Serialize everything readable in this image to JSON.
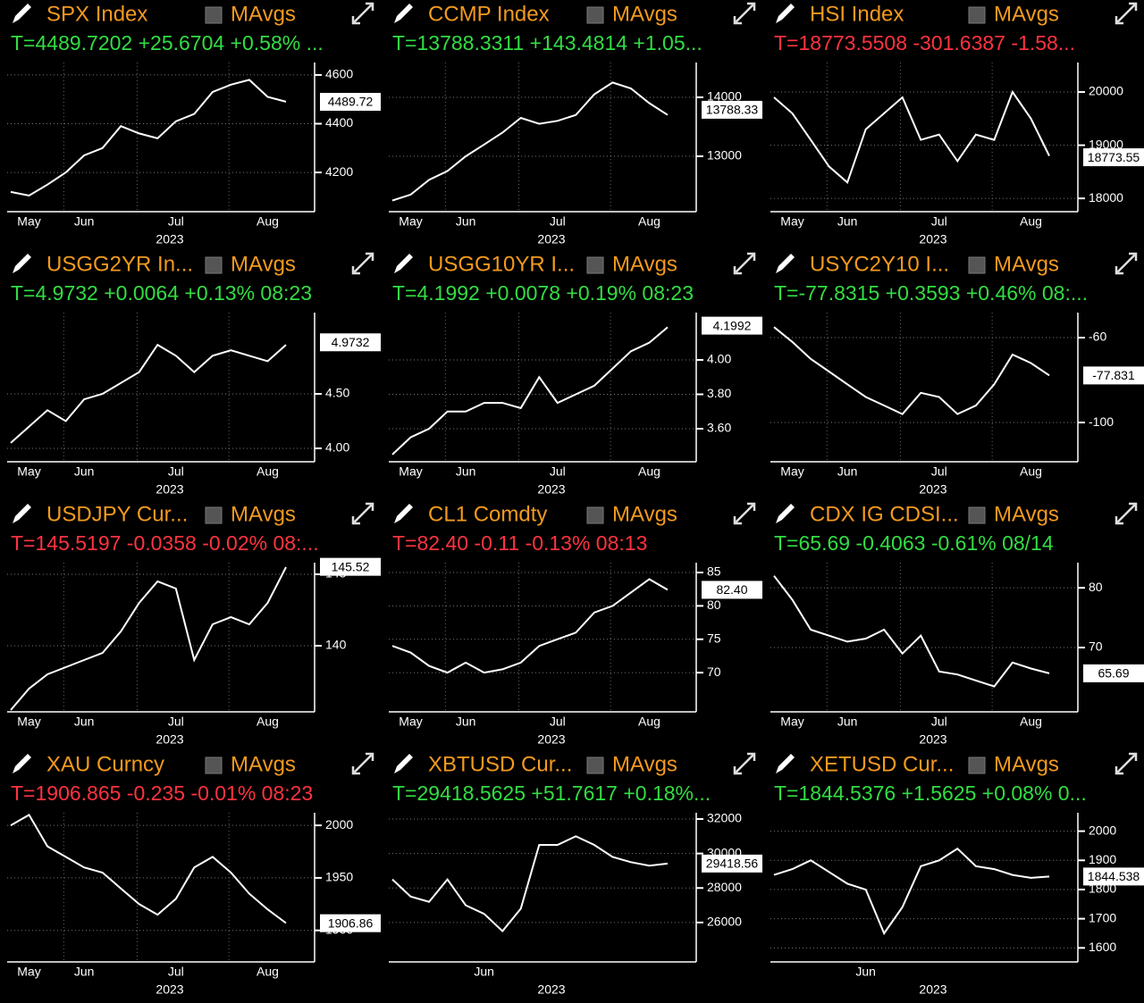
{
  "chart_data": [
    {
      "type": "line",
      "title": "SPX Index",
      "toggle": "MAvgs",
      "quote": "T=4489.7202 +25.6704 +0.58% ...",
      "quote_color": "#33dd44",
      "color": "#ffffff",
      "categories": [
        null,
        "May",
        null,
        null,
        "Jun",
        null,
        null,
        null,
        null,
        "Jul",
        null,
        null,
        null,
        null,
        "Aug",
        null
      ],
      "values": [
        4120,
        4105,
        4150,
        4200,
        4270,
        4300,
        4390,
        4360,
        4340,
        4410,
        4440,
        4530,
        4560,
        4580,
        4510,
        4490
      ],
      "ylim": [
        4039,
        4651
      ],
      "yticks": [
        4200,
        4400,
        4600
      ],
      "last_value": 4489.72,
      "year": "2023"
    },
    {
      "type": "line",
      "title": "CCMP Index",
      "toggle": "MAvgs",
      "quote": "T=13788.3311 +143.4814 +1.05...",
      "quote_color": "#33dd44",
      "color": "#ffffff",
      "categories": [
        null,
        "May",
        null,
        null,
        "Jun",
        null,
        null,
        null,
        null,
        "Jul",
        null,
        null,
        null,
        null,
        "Aug",
        null
      ],
      "values": [
        12250,
        12350,
        12600,
        12750,
        13000,
        13200,
        13400,
        13650,
        13550,
        13600,
        13700,
        14050,
        14250,
        14150,
        13900,
        13700
      ],
      "ylim": [
        12060,
        14590
      ],
      "yticks": [
        13000,
        14000
      ],
      "last_value": 13788.33,
      "year": "2023"
    },
    {
      "type": "line",
      "title": "HSI Index",
      "toggle": "MAvgs",
      "quote": "T=18773.5508 -301.6387 -1.58...",
      "quote_color": "#ff3340",
      "color": "#ffffff",
      "categories": [
        null,
        "May",
        null,
        null,
        "Jun",
        null,
        null,
        null,
        null,
        "Jul",
        null,
        null,
        null,
        null,
        "Aug",
        null
      ],
      "values": [
        19900,
        19600,
        19100,
        18600,
        18300,
        19300,
        19600,
        19900,
        19100,
        19200,
        18700,
        19200,
        19100,
        20000,
        19500,
        18800
      ],
      "ylim": [
        17750,
        20555
      ],
      "yticks": [
        18000,
        19000,
        20000
      ],
      "last_value": 18773.55,
      "year": "2023"
    },
    {
      "type": "line",
      "title": "USGG2YR In...",
      "toggle": "MAvgs",
      "quote": "T=4.9732 +0.0064 +0.13% 08:23",
      "quote_color": "#33dd44",
      "color": "#ffffff",
      "categories": [
        null,
        "May",
        null,
        null,
        "Jun",
        null,
        null,
        null,
        null,
        "Jul",
        null,
        null,
        null,
        null,
        "Aug",
        null
      ],
      "values": [
        4.05,
        4.2,
        4.35,
        4.25,
        4.45,
        4.5,
        4.6,
        4.7,
        4.95,
        4.85,
        4.7,
        4.85,
        4.9,
        4.85,
        4.8,
        4.95
      ],
      "ylim": [
        3.877,
        5.246
      ],
      "yticks": [
        {
          "value": 4,
          "label": "4.00"
        },
        {
          "value": 4.5,
          "label": "4.50"
        }
      ],
      "last_value": 4.9732,
      "year": "2023"
    },
    {
      "type": "line",
      "title": "USGG10YR I...",
      "toggle": "MAvgs",
      "quote": "T=4.1992 +0.0078 +0.19% 08:23",
      "quote_color": "#33dd44",
      "color": "#ffffff",
      "categories": [
        null,
        "May",
        null,
        null,
        "Jun",
        null,
        null,
        null,
        null,
        "Jul",
        null,
        null,
        null,
        null,
        "Aug",
        null
      ],
      "values": [
        3.45,
        3.55,
        3.6,
        3.7,
        3.7,
        3.75,
        3.75,
        3.72,
        3.9,
        3.75,
        3.8,
        3.85,
        3.95,
        4.05,
        4.1,
        4.19
      ],
      "ylim": [
        3.408,
        4.275
      ],
      "yticks": [
        {
          "value": 3.6,
          "label": "3.60"
        },
        {
          "value": 3.8,
          "label": "3.80"
        },
        {
          "value": 4,
          "label": "4.00"
        }
      ],
      "last_value": 4.1992,
      "year": "2023"
    },
    {
      "type": "line",
      "title": "USYC2Y10 I...",
      "toggle": "MAvgs",
      "quote": "T=-77.8315 +0.3593 +0.46% 08:...",
      "quote_color": "#33dd44",
      "color": "#ffffff",
      "categories": [
        null,
        "May",
        null,
        null,
        "Jun",
        null,
        null,
        null,
        null,
        "Jul",
        null,
        null,
        null,
        null,
        "Aug",
        null
      ],
      "values": [
        -55,
        -62,
        -70,
        -76,
        -82,
        -88,
        -92,
        -96,
        -86,
        -88,
        -96,
        -92,
        -82,
        -68,
        -72,
        -77.8
      ],
      "ylim": [
        -118.5,
        -48.2
      ],
      "yticks": [
        -100,
        -60
      ],
      "last_value": -77.831,
      "year": "2023"
    },
    {
      "type": "line",
      "title": "USDJPY Cur...",
      "toggle": "MAvgs",
      "quote": "T=145.5197 -0.0358 -0.02% 08:...",
      "quote_color": "#ff3340",
      "color": "#ffffff",
      "categories": [
        null,
        "May",
        null,
        null,
        "Jun",
        null,
        null,
        null,
        null,
        "Jul",
        null,
        null,
        null,
        null,
        "Aug",
        null
      ],
      "values": [
        135.5,
        137,
        138,
        138.5,
        139,
        139.5,
        141,
        143,
        144.5,
        144,
        139,
        141.5,
        142,
        141.5,
        143,
        145.5
      ],
      "ylim": [
        135.375,
        145.81
      ],
      "yticks": [
        140,
        145
      ],
      "last_value": 145.52,
      "year": "2023"
    },
    {
      "type": "line",
      "title": "CL1 Comdty",
      "toggle": "MAvgs",
      "quote": "T=82.40 -0.11 -0.13% 08:13",
      "quote_color": "#ff3340",
      "color": "#ffffff",
      "categories": [
        null,
        "May",
        null,
        null,
        "Jun",
        null,
        null,
        null,
        null,
        "Jul",
        null,
        null,
        null,
        null,
        "Aug",
        null
      ],
      "values": [
        74,
        73,
        71,
        70,
        71.5,
        70,
        70.5,
        71.5,
        74,
        75,
        76,
        79,
        80,
        82,
        84,
        82.4
      ],
      "ylim": [
        64.13,
        86.47
      ],
      "yticks": [
        70,
        75,
        80,
        85
      ],
      "last_value": {
        "value": 82.4,
        "label": "82.40"
      },
      "year": "2023"
    },
    {
      "type": "line",
      "title": "CDX IG CDSI...",
      "toggle": "MAvgs",
      "quote": "T=65.69 -0.4063 -0.61% 08/14",
      "quote_color": "#33dd44",
      "color": "#ffffff",
      "categories": [
        null,
        "May",
        null,
        null,
        "Jun",
        null,
        null,
        null,
        null,
        "Jul",
        null,
        null,
        null,
        null,
        "Aug",
        null
      ],
      "values": [
        82,
        78,
        73,
        72,
        71,
        71.5,
        73,
        69,
        72,
        66,
        65.5,
        64.5,
        63.5,
        67.5,
        66.5,
        65.69
      ],
      "ylim": [
        59.25,
        84.2
      ],
      "yticks": [
        70,
        80
      ],
      "last_value": 65.69,
      "year": "2023"
    },
    {
      "type": "line",
      "title": "XAU Curncy",
      "toggle": "MAvgs",
      "quote": "T=1906.865 -0.235 -0.01% 08:23",
      "quote_color": "#ff3340",
      "color": "#ffffff",
      "categories": [
        null,
        "May",
        null,
        null,
        "Jun",
        null,
        null,
        null,
        null,
        "Jul",
        null,
        null,
        null,
        null,
        "Aug",
        null
      ],
      "values": [
        2000,
        2010,
        1980,
        1970,
        1960,
        1955,
        1940,
        1925,
        1915,
        1930,
        1960,
        1970,
        1955,
        1935,
        1920,
        1907
      ],
      "ylim": [
        1870,
        2012
      ],
      "yticks": [
        1900,
        1950,
        2000
      ],
      "last_value": 1906.86,
      "year": "2023"
    },
    {
      "type": "line",
      "title": "XBTUSD Cur...",
      "toggle": "MAvgs",
      "quote": "T=29418.5625 +51.7617 +0.18%...",
      "quote_color": "#33dd44",
      "color": "#ffffff",
      "categories": [
        null,
        null,
        null,
        null,
        null,
        "Jun",
        null,
        null,
        null,
        null,
        null,
        null,
        null,
        null,
        null,
        null
      ],
      "values": [
        28500,
        27500,
        27200,
        28500,
        27000,
        26500,
        25500,
        26800,
        30500,
        30500,
        31000,
        30500,
        29800,
        29500,
        29300,
        29418
      ],
      "ylim": [
        23714,
        32364
      ],
      "yticks": [
        26000,
        28000,
        30000,
        32000
      ],
      "last_value": 29418.56,
      "year": "2023"
    },
    {
      "type": "line",
      "title": "XETUSD Cur...",
      "toggle": "MAvgs",
      "quote": "T=1844.5376 +1.5625 +0.08% 0...",
      "quote_color": "#33dd44",
      "color": "#ffffff",
      "categories": [
        null,
        null,
        null,
        null,
        null,
        "Jun",
        null,
        null,
        null,
        null,
        null,
        null,
        null,
        null,
        null,
        null
      ],
      "values": [
        1850,
        1870,
        1900,
        1860,
        1820,
        1800,
        1650,
        1740,
        1880,
        1900,
        1940,
        1880,
        1870,
        1850,
        1840,
        1844.5
      ],
      "ylim": [
        1552,
        2063
      ],
      "yticks": [
        1600,
        1700,
        1800,
        1900,
        2000
      ],
      "last_value": 1844.538,
      "year": "2023"
    }
  ]
}
